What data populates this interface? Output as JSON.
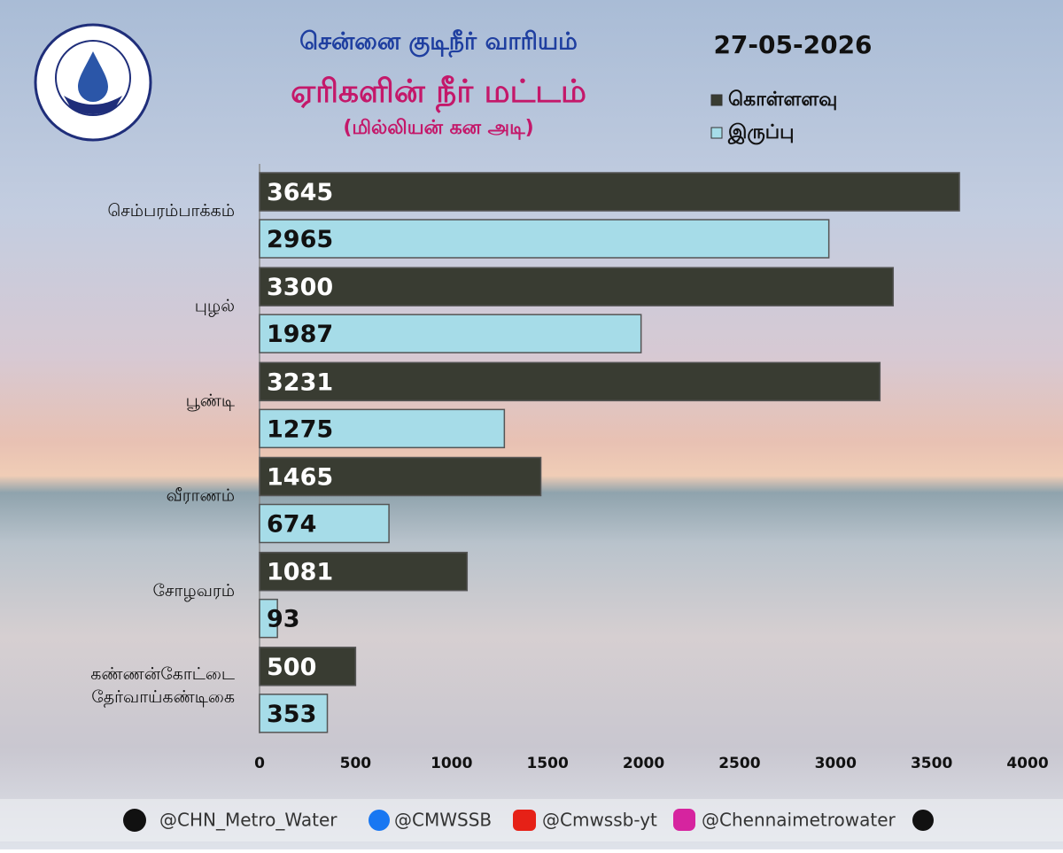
{
  "chart_data": {
    "type": "bar",
    "orientation": "horizontal",
    "header": "சென்னை குடிநீர் வாரியம்",
    "title": "ஏரிகளின் நீர் மட்டம்",
    "subtitle": "(மில்லியன் கன அடி)",
    "date": "27-05-2026",
    "categories": [
      "செம்பரம்பாக்கம்",
      "புழல்",
      "பூண்டி",
      "வீராணம்",
      "சோழவரம்",
      [
        "கண்ணன்கோட்டை",
        "தேர்வாய்கண்டிகை"
      ]
    ],
    "series": [
      {
        "name": "கொள்ளளவு",
        "color": "#393c32",
        "values": [
          3645,
          3300,
          3231,
          1465,
          1081,
          500
        ]
      },
      {
        "name": "இருப்பு",
        "color": "#a6dce8",
        "values": [
          2965,
          1987,
          1275,
          674,
          93,
          353
        ]
      }
    ],
    "xlim": [
      0,
      4000
    ],
    "xticks": [
      0,
      500,
      1000,
      1500,
      2000,
      2500,
      3000,
      3500,
      4000
    ],
    "grid": false,
    "footer": [
      "@CHN_Metro_Water",
      "@CMWSSB",
      "@Cmwssb-yt",
      "@Chennaimetrowater"
    ]
  }
}
